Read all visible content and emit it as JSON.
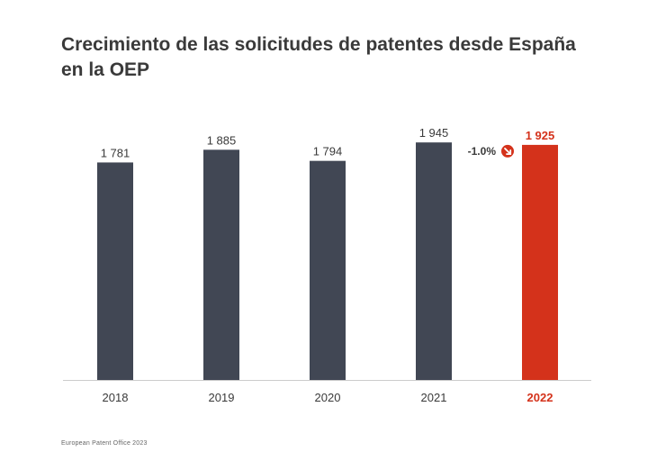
{
  "title": "Crecimiento de las solicitudes de patentes desde España en la OEP",
  "footer": "European Patent Office 2023",
  "colors": {
    "bar": "#414754",
    "highlight": "#d4321b",
    "axis": "#cccccc",
    "label": "#3a3a3a"
  },
  "chart_data": {
    "type": "bar",
    "title": "Crecimiento de las solicitudes de patentes desde España en la OEP",
    "categories": [
      "2018",
      "2019",
      "2020",
      "2021",
      "2022"
    ],
    "values": [
      1781,
      1885,
      1794,
      1945,
      1925
    ],
    "value_labels": [
      "1 781",
      "1 885",
      "1 794",
      "1 945",
      "1 925"
    ],
    "highlight_index": 4,
    "change_label": "-1.0%",
    "change_icon": "arrow-down-right-icon",
    "ylim": [
      0,
      2200
    ],
    "grid": false,
    "xlabel": "",
    "ylabel": ""
  }
}
